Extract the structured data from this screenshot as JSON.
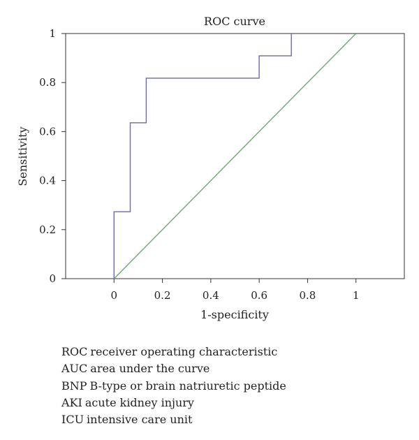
{
  "chart_data": {
    "type": "line",
    "title": "ROC curve",
    "xlabel": "1-specificity",
    "ylabel": "Sensitivity",
    "xlim": [
      -0.2,
      1.2
    ],
    "ylim": [
      0,
      1
    ],
    "xticks": [
      "0",
      "0.2",
      "0.4",
      "0.6",
      "0.8",
      "1"
    ],
    "yticks": [
      "0",
      "0.2",
      "0.4",
      "0.6",
      "0.8",
      "1"
    ],
    "grid": false,
    "series": [
      {
        "color": "#6c6aa8",
        "style": "step",
        "x": [
          0,
          0,
          0.067,
          0.067,
          0.133,
          0.133,
          0.6,
          0.6,
          0.733,
          0.733
        ],
        "y": [
          0,
          0.273,
          0.273,
          0.636,
          0.636,
          0.818,
          0.818,
          0.909,
          0.909,
          1.0
        ]
      },
      {
        "color": "#6aaa72",
        "style": "reference",
        "x": [
          0,
          1
        ],
        "y": [
          0,
          1
        ]
      }
    ]
  },
  "legend_notes": [
    {
      "abbr": "ROC",
      "text": "receiver operating characteristic"
    },
    {
      "abbr": "AUC",
      "text": "area under the curve"
    },
    {
      "abbr": "BNP",
      "text": "B-type or brain natriuretic peptide"
    },
    {
      "abbr": "AKI",
      "text": "acute kidney injury"
    },
    {
      "abbr": "ICU",
      "text": "intensive care unit"
    }
  ]
}
